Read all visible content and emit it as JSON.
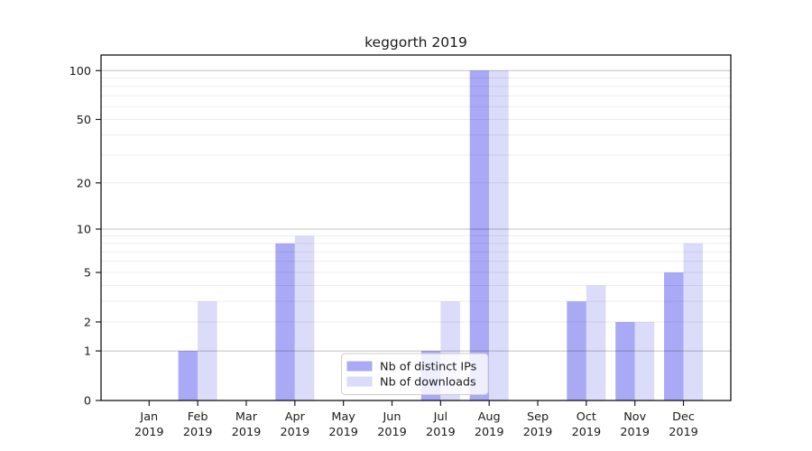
{
  "chart_data": {
    "type": "bar",
    "title": "keggorth 2019",
    "categories": [
      "Jan",
      "Feb",
      "Mar",
      "Apr",
      "May",
      "Jun",
      "Jul",
      "Aug",
      "Sep",
      "Oct",
      "Nov",
      "Dec"
    ],
    "year_label": "2019",
    "series": [
      {
        "name": "Nb of distinct IPs",
        "color": "#a9a9f6",
        "values": [
          0,
          1,
          0,
          8,
          0,
          0,
          1,
          100,
          0,
          3,
          2,
          5
        ]
      },
      {
        "name": "Nb of downloads",
        "color": "#dbdbfa",
        "values": [
          0,
          3,
          0,
          9,
          0,
          0,
          3,
          100,
          0,
          4,
          2,
          8
        ]
      }
    ],
    "yscale": "log1p",
    "yticks": [
      0,
      1,
      2,
      5,
      10,
      20,
      50,
      100
    ],
    "minor_yticks": [
      2,
      3,
      4,
      5,
      6,
      7,
      8,
      9,
      20,
      30,
      40,
      50,
      60,
      70,
      80,
      90
    ],
    "ylim": [
      0,
      125
    ],
    "grid": "on",
    "legend_position": "lower-center"
  },
  "colors": {
    "major_grid": "rgba(0,0,0,0.24)",
    "minor_grid": "rgba(0,0,0,0.07)",
    "spine": "#000000",
    "tick": "#1a1a1a",
    "legend_border": "#cccccc",
    "legend_bg": "rgba(255,255,255,0.8)"
  }
}
